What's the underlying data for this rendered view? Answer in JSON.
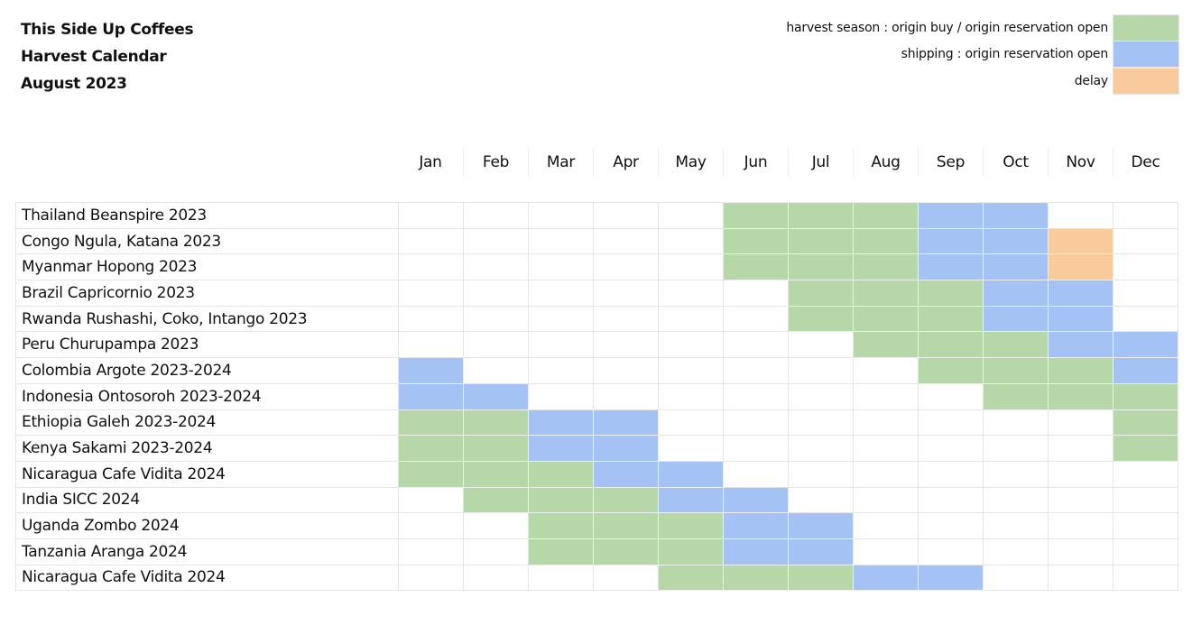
{
  "header": {
    "title_lines": [
      "This Side Up Coffees",
      "Harvest Calendar",
      "August 2023"
    ]
  },
  "legend": [
    {
      "key": "harvest",
      "label": "harvest season : origin buy / origin reservation open",
      "color": "#b6d7a8"
    },
    {
      "key": "shipping",
      "label": "shipping : origin reservation open",
      "color": "#a4c2f4"
    },
    {
      "key": "delay",
      "label": "delay",
      "color": "#f9cb9c"
    }
  ],
  "chart_data": {
    "type": "table",
    "title": "Harvest Calendar",
    "months": [
      "Jan",
      "Feb",
      "Mar",
      "Apr",
      "May",
      "Jun",
      "Jul",
      "Aug",
      "Sep",
      "Oct",
      "Nov",
      "Dec"
    ],
    "rows": [
      {
        "name": "Thailand Beanspire 2023",
        "cells": [
          "",
          "",
          "",
          "",
          "",
          "harvest",
          "harvest",
          "harvest",
          "shipping",
          "shipping",
          "",
          ""
        ]
      },
      {
        "name": "Congo Ngula, Katana 2023",
        "cells": [
          "",
          "",
          "",
          "",
          "",
          "harvest",
          "harvest",
          "harvest",
          "shipping",
          "shipping",
          "delay",
          ""
        ]
      },
      {
        "name": "Myanmar Hopong 2023",
        "cells": [
          "",
          "",
          "",
          "",
          "",
          "harvest",
          "harvest",
          "harvest",
          "shipping",
          "shipping",
          "delay",
          ""
        ]
      },
      {
        "name": "Brazil Capricornio 2023",
        "cells": [
          "",
          "",
          "",
          "",
          "",
          "",
          "harvest",
          "harvest",
          "harvest",
          "shipping",
          "shipping",
          ""
        ]
      },
      {
        "name": "Rwanda Rushashi, Coko, Intango 2023",
        "cells": [
          "",
          "",
          "",
          "",
          "",
          "",
          "harvest",
          "harvest",
          "harvest",
          "shipping",
          "shipping",
          ""
        ]
      },
      {
        "name": "Peru Churupampa 2023",
        "cells": [
          "",
          "",
          "",
          "",
          "",
          "",
          "",
          "harvest",
          "harvest",
          "harvest",
          "shipping",
          "shipping"
        ]
      },
      {
        "name": "Colombia Argote 2023-2024",
        "cells": [
          "shipping",
          "",
          "",
          "",
          "",
          "",
          "",
          "",
          "harvest",
          "harvest",
          "harvest",
          "shipping"
        ]
      },
      {
        "name": "Indonesia Ontosoroh 2023-2024",
        "cells": [
          "shipping",
          "shipping",
          "",
          "",
          "",
          "",
          "",
          "",
          "",
          "harvest",
          "harvest",
          "harvest"
        ]
      },
      {
        "name": "Ethiopia Galeh 2023-2024",
        "cells": [
          "harvest",
          "harvest",
          "shipping",
          "shipping",
          "",
          "",
          "",
          "",
          "",
          "",
          "",
          "harvest"
        ]
      },
      {
        "name": "Kenya Sakami 2023-2024",
        "cells": [
          "harvest",
          "harvest",
          "shipping",
          "shipping",
          "",
          "",
          "",
          "",
          "",
          "",
          "",
          "harvest"
        ]
      },
      {
        "name": "Nicaragua Cafe Vidita 2024",
        "cells": [
          "harvest",
          "harvest",
          "harvest",
          "shipping",
          "shipping",
          "",
          "",
          "",
          "",
          "",
          "",
          ""
        ]
      },
      {
        "name": "India SICC 2024",
        "cells": [
          "",
          "harvest",
          "harvest",
          "harvest",
          "shipping",
          "shipping",
          "",
          "",
          "",
          "",
          "",
          ""
        ]
      },
      {
        "name": "Uganda Zombo 2024",
        "cells": [
          "",
          "",
          "harvest",
          "harvest",
          "harvest",
          "shipping",
          "shipping",
          "",
          "",
          "",
          "",
          ""
        ]
      },
      {
        "name": "Tanzania Aranga 2024",
        "cells": [
          "",
          "",
          "harvest",
          "harvest",
          "harvest",
          "shipping",
          "shipping",
          "",
          "",
          "",
          "",
          ""
        ]
      },
      {
        "name": "Nicaragua Cafe Vidita 2024",
        "cells": [
          "",
          "",
          "",
          "",
          "harvest",
          "harvest",
          "harvest",
          "shipping",
          "shipping",
          "",
          "",
          ""
        ]
      }
    ]
  }
}
